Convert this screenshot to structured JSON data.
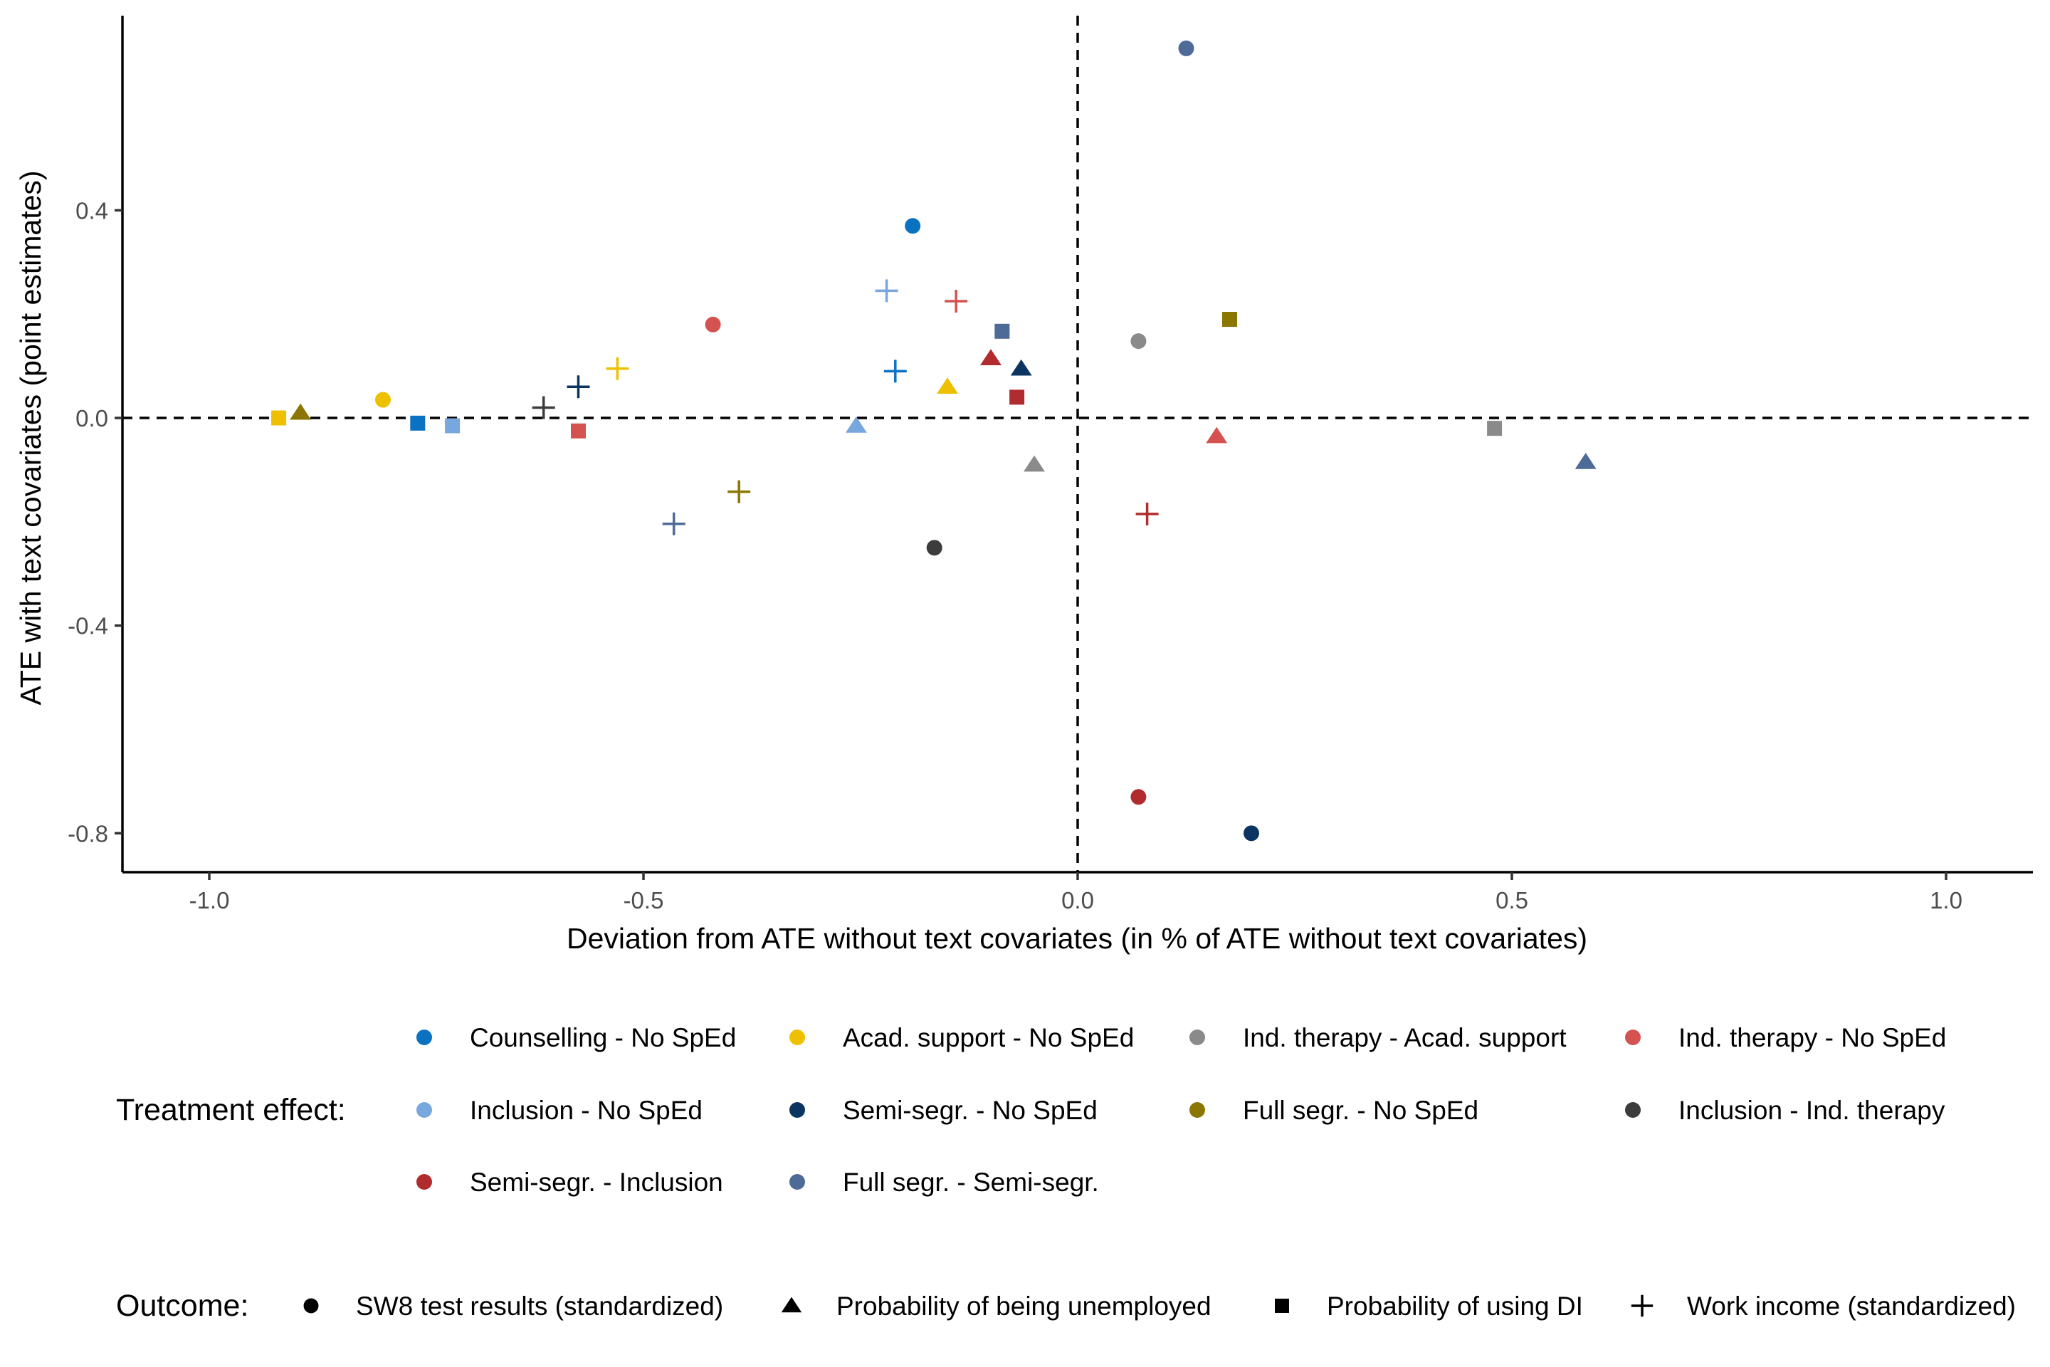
{
  "chart_data": {
    "type": "scatter",
    "xlabel": "Deviation from ATE without text covariates (in % of ATE without text covariates)",
    "ylabel": "ATE with text covariates (point estimates)",
    "xlim": [
      -1.1,
      1.1
    ],
    "ylim": [
      -0.875,
      0.775
    ],
    "x_ticks": [
      -1.0,
      -0.5,
      0.0,
      0.5,
      1.0
    ],
    "x_tick_labels": [
      "-1.0",
      "-0.5",
      "0.0",
      "0.5",
      "1.0"
    ],
    "y_ticks": [
      -0.8,
      -0.4,
      0.0,
      0.4
    ],
    "y_tick_labels": [
      "-0.8",
      "-0.4",
      "0.0",
      "0.4"
    ],
    "reference_lines": {
      "x": 0.0,
      "y": 0.0,
      "style": "dashed"
    },
    "grid": false,
    "legend_treatment": {
      "title": "Treatment effect:",
      "position": "bottom",
      "entries": [
        {
          "label": "Counselling - No SpEd",
          "color": "#0b72c2"
        },
        {
          "label": "Acad. support - No SpEd",
          "color": "#eec000"
        },
        {
          "label": "Ind. therapy - Acad. support",
          "color": "#8a8a8a"
        },
        {
          "label": "Ind. therapy - No SpEd",
          "color": "#d45350"
        },
        {
          "label": "Inclusion - No SpEd",
          "color": "#78a7dd"
        },
        {
          "label": "Semi-segr. - No SpEd",
          "color": "#0b3560"
        },
        {
          "label": "Full segr. - No SpEd",
          "color": "#8a7600"
        },
        {
          "label": "Inclusion - Ind. therapy",
          "color": "#3c3c3c"
        },
        {
          "label": "Semi-segr. - Inclusion",
          "color": "#b12c2e"
        },
        {
          "label": "Full segr. - Semi-segr.",
          "color": "#4d6b96"
        }
      ]
    },
    "legend_outcome": {
      "title": "Outcome:",
      "position": "bottom",
      "entries": [
        {
          "label": "SW8 test results (standardized)",
          "shape": "circle"
        },
        {
          "label": "Probability of being unemployed",
          "shape": "triangle"
        },
        {
          "label": "Probability of using DI",
          "shape": "square"
        },
        {
          "label": "Work income (standardized)",
          "shape": "plus"
        }
      ]
    },
    "series": [
      {
        "name": "Counselling - No SpEd",
        "points": [
          {
            "outcome": "circle",
            "x": -0.19,
            "y": 0.37
          },
          {
            "outcome": "square",
            "x": -0.76,
            "y": -0.01
          },
          {
            "outcome": "plus",
            "x": -0.21,
            "y": 0.09
          }
        ]
      },
      {
        "name": "Acad. support - No SpEd",
        "points": [
          {
            "outcome": "circle",
            "x": -0.8,
            "y": 0.035
          },
          {
            "outcome": "triangle",
            "x": -0.15,
            "y": 0.06
          },
          {
            "outcome": "square",
            "x": -0.92,
            "y": 0.0
          },
          {
            "outcome": "plus",
            "x": -0.53,
            "y": 0.095
          }
        ]
      },
      {
        "name": "Ind. therapy - Acad. support",
        "points": [
          {
            "outcome": "circle",
            "x": 0.07,
            "y": 0.148
          },
          {
            "outcome": "triangle",
            "x": -0.05,
            "y": -0.09
          },
          {
            "outcome": "square",
            "x": 0.48,
            "y": -0.02
          }
        ]
      },
      {
        "name": "Ind. therapy - No SpEd",
        "points": [
          {
            "outcome": "circle",
            "x": -0.42,
            "y": 0.18
          },
          {
            "outcome": "triangle",
            "x": 0.16,
            "y": -0.035
          },
          {
            "outcome": "square",
            "x": -0.575,
            "y": -0.025
          },
          {
            "outcome": "plus",
            "x": -0.14,
            "y": 0.225
          }
        ]
      },
      {
        "name": "Inclusion - No SpEd",
        "points": [
          {
            "outcome": "triangle",
            "x": -0.255,
            "y": -0.015
          },
          {
            "outcome": "square",
            "x": -0.72,
            "y": -0.015
          },
          {
            "outcome": "plus",
            "x": -0.22,
            "y": 0.245
          }
        ]
      },
      {
        "name": "Semi-segr. - No SpEd",
        "points": [
          {
            "outcome": "circle",
            "x": 0.2,
            "y": -0.8
          },
          {
            "outcome": "triangle",
            "x": -0.065,
            "y": 0.095
          },
          {
            "outcome": "plus",
            "x": -0.575,
            "y": 0.06
          }
        ]
      },
      {
        "name": "Full segr. - No SpEd",
        "points": [
          {
            "outcome": "triangle",
            "x": -0.895,
            "y": 0.01
          },
          {
            "outcome": "square",
            "x": 0.175,
            "y": 0.19
          },
          {
            "outcome": "plus",
            "x": -0.39,
            "y": -0.142
          }
        ]
      },
      {
        "name": "Inclusion - Ind. therapy",
        "points": [
          {
            "outcome": "circle",
            "x": -0.165,
            "y": -0.25
          },
          {
            "outcome": "plus",
            "x": -0.615,
            "y": 0.02
          }
        ]
      },
      {
        "name": "Semi-segr. - Inclusion",
        "points": [
          {
            "outcome": "circle",
            "x": 0.07,
            "y": -0.73
          },
          {
            "outcome": "triangle",
            "x": -0.1,
            "y": 0.115
          },
          {
            "outcome": "square",
            "x": -0.07,
            "y": 0.04
          },
          {
            "outcome": "plus",
            "x": 0.08,
            "y": -0.185
          }
        ]
      },
      {
        "name": "Full segr. - Semi-segr.",
        "points": [
          {
            "outcome": "circle",
            "x": 0.125,
            "y": 0.712
          },
          {
            "outcome": "triangle",
            "x": 0.585,
            "y": -0.085
          },
          {
            "outcome": "square",
            "x": -0.087,
            "y": 0.167
          },
          {
            "outcome": "plus",
            "x": -0.465,
            "y": -0.204
          }
        ]
      }
    ]
  }
}
